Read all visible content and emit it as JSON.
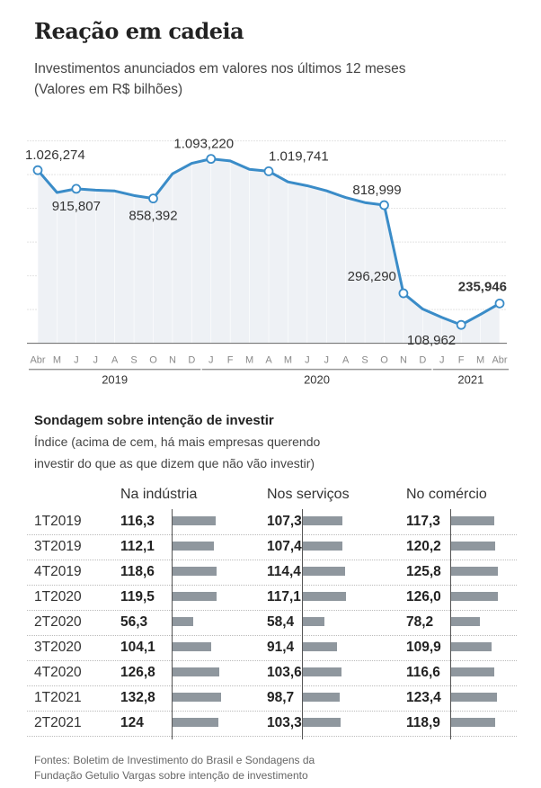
{
  "title": "Reação em cadeia",
  "subtitle": [
    "Investimentos anunciados em valores nos últimos 12 meses",
    "(Valores em R$ bilhões)"
  ],
  "chart_data": [
    {
      "type": "line",
      "title": "Investimentos anunciados em valores nos últimos 12 meses",
      "ylabel": "R$ bilhões",
      "ylim": [
        0,
        1200
      ],
      "grid": true,
      "x": [
        "Abr",
        "M",
        "J",
        "J",
        "A",
        "S",
        "O",
        "N",
        "D",
        "J",
        "F",
        "M",
        "A",
        "M",
        "J",
        "J",
        "A",
        "S",
        "O",
        "N",
        "D",
        "J",
        "F",
        "M",
        "Abr"
      ],
      "years": [
        {
          "label": "2019",
          "from": 0,
          "to": 8
        },
        {
          "label": "2020",
          "from": 9,
          "to": 20
        },
        {
          "label": "2021",
          "from": 21,
          "to": 24
        }
      ],
      "values": [
        1026.274,
        894,
        915.807,
        908,
        903,
        876,
        858.392,
        1005,
        1067,
        1093.22,
        1081,
        1031,
        1019.741,
        957,
        934,
        904,
        864,
        834,
        818.999,
        296.29,
        203,
        153,
        108.962,
        171,
        235.946
      ],
      "labels": [
        {
          "i": 0,
          "text": "1.026,274",
          "pos": "above"
        },
        {
          "i": 2,
          "text": "915,807",
          "pos": "below"
        },
        {
          "i": 6,
          "text": "858,392",
          "pos": "below"
        },
        {
          "i": 9,
          "text": "1.093,220",
          "pos": "above"
        },
        {
          "i": 12,
          "text": "1.019,741",
          "pos": "aboveright"
        },
        {
          "i": 18,
          "text": "818,999",
          "pos": "above"
        },
        {
          "i": 19,
          "text": "296,290",
          "pos": "left"
        },
        {
          "i": 22,
          "text": "108,962",
          "pos": "belowleft"
        },
        {
          "i": 24,
          "text": "235,946",
          "pos": "aboveleft",
          "bold": true
        }
      ],
      "color": "#3a8cc8"
    },
    {
      "type": "table",
      "title": "Sondagem sobre intenção de investir",
      "subtitle": [
        "Índice (acima de cem, há mais empresas querendo",
        "investir do que as que dizem que não vão investir)"
      ],
      "columns": [
        "Na indústria",
        "Nos serviços",
        "No comércio"
      ],
      "rows": [
        {
          "period": "1T2019",
          "values": [
            "116,3",
            "107,3",
            "117,3"
          ],
          "num": [
            116.3,
            107.3,
            117.3
          ]
        },
        {
          "period": "3T2019",
          "values": [
            "112,1",
            "107,4",
            "120,2"
          ],
          "num": [
            112.1,
            107.4,
            120.2
          ]
        },
        {
          "period": "4T2019",
          "values": [
            "118,6",
            "114,4",
            "125,8"
          ],
          "num": [
            118.6,
            114.4,
            125.8
          ]
        },
        {
          "period": "1T2020",
          "values": [
            "119,5",
            "117,1",
            "126,0"
          ],
          "num": [
            119.5,
            117.1,
            126.0
          ]
        },
        {
          "period": "2T2020",
          "values": [
            "56,3",
            "58,4",
            "78,2"
          ],
          "num": [
            56.3,
            58.4,
            78.2
          ]
        },
        {
          "period": "3T2020",
          "values": [
            "104,1",
            "91,4",
            "109,9"
          ],
          "num": [
            104.1,
            91.4,
            109.9
          ]
        },
        {
          "period": "4T2020",
          "values": [
            "126,8",
            "103,6",
            "116,6"
          ],
          "num": [
            126.8,
            103.6,
            116.6
          ]
        },
        {
          "period": "1T2021",
          "values": [
            "132,8",
            "98,7",
            "123,4"
          ],
          "num": [
            132.8,
            98.7,
            123.4
          ]
        },
        {
          "period": "2T2021",
          "values": [
            "124",
            "103,3",
            "118,9"
          ],
          "num": [
            124,
            103.3,
            118.9
          ]
        }
      ],
      "bar_color": "#8f979e"
    }
  ],
  "source": [
    "Fontes: Boletim de Investimento do Brasil e Sondagens da",
    "Fundação Getulio Vargas sobre intenção de investimento"
  ]
}
